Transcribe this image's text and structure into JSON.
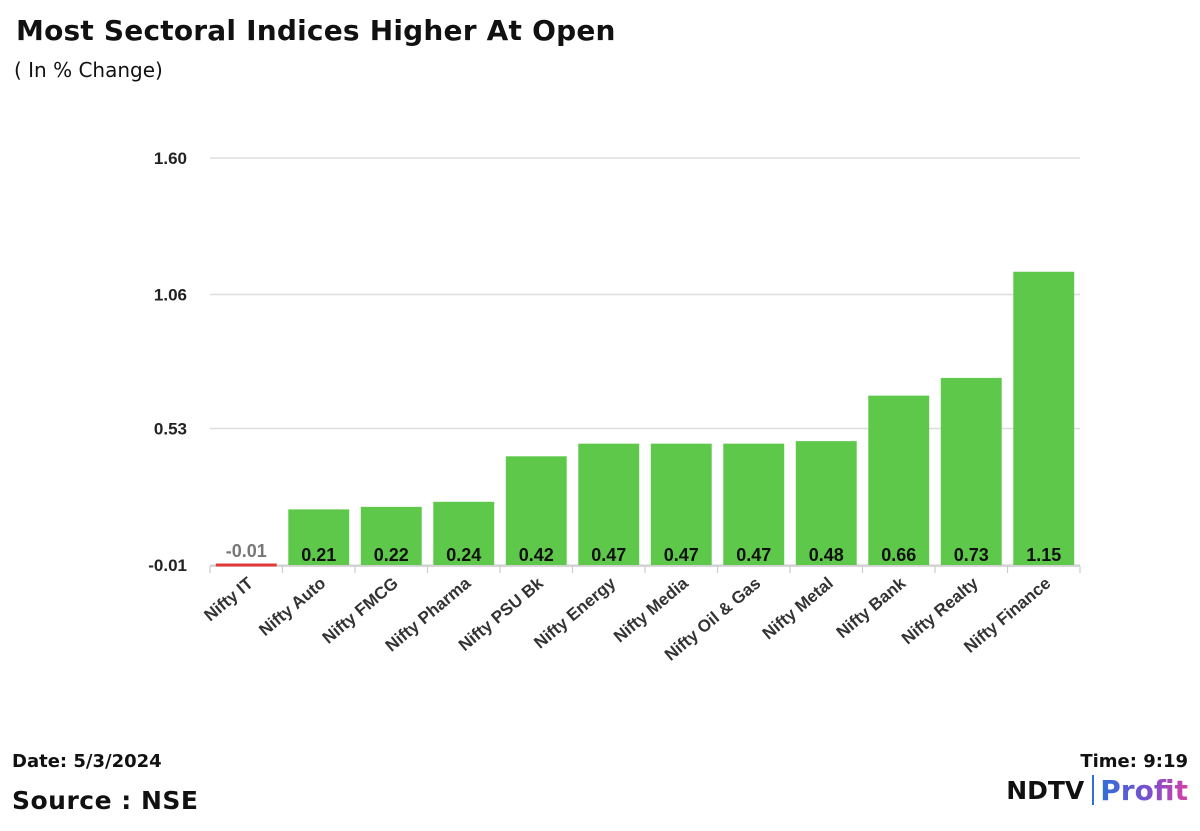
{
  "header": {
    "title": "Most Sectoral Indices Higher At Open",
    "subtitle": "( In % Change)"
  },
  "footer": {
    "date": "Date: 5/3/2024",
    "time": "Time: 9:19",
    "source": "Source : NSE"
  },
  "logo": {
    "ndtv": "NDTV",
    "profit": "Profit"
  },
  "colors": {
    "positive_bar": "#5ec84a",
    "negative_bar": "#e03a3a",
    "grid": "#dddddd",
    "text": "#222222"
  },
  "chart_data": {
    "type": "bar",
    "title": "Most Sectoral Indices Higher At Open",
    "subtitle": "( In % Change)",
    "xlabel": "",
    "ylabel": "",
    "categories": [
      "Nifty IT",
      "Nifty Auto",
      "Nifty FMCG",
      "Nifty Pharma",
      "Nifty PSU Bk",
      "Nifty Energy",
      "Nifty Media",
      "Nifty Oil & Gas",
      "Nifty Metal",
      "Nifty Bank",
      "Nifty Realty",
      "Nifty Finance"
    ],
    "values": [
      -0.01,
      0.21,
      0.22,
      0.24,
      0.42,
      0.47,
      0.47,
      0.47,
      0.48,
      0.66,
      0.73,
      1.15
    ],
    "data_labels": [
      "-0.01",
      "0.21",
      "0.22",
      "0.24",
      "0.42",
      "0.47",
      "0.47",
      "0.47",
      "0.48",
      "0.66",
      "0.73",
      "1.15"
    ],
    "yticks": [
      -0.01,
      0.53,
      1.06,
      1.6
    ],
    "ytick_labels": [
      "-0.01",
      "0.53",
      "1.06",
      "1.60"
    ],
    "ylim": [
      -0.01,
      1.6
    ],
    "grid": true,
    "legend": "none"
  }
}
